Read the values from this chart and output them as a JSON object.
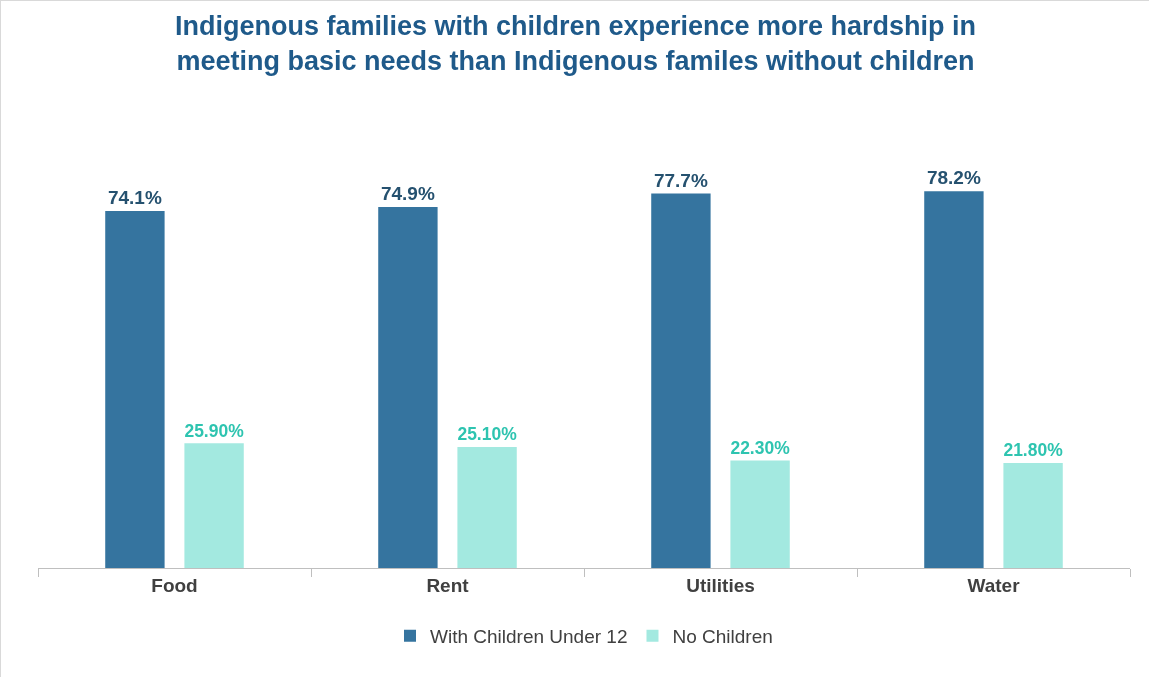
{
  "chart_data": {
    "type": "bar",
    "title": "Indigenous families with children experience more hardship in meeting basic needs than Indigenous familes without children",
    "categories": [
      "Food",
      "Rent",
      "Utilities",
      "Water"
    ],
    "series": [
      {
        "name": "With Children Under 12",
        "color": "#35749f",
        "values": [
          74.1,
          74.9,
          77.7,
          78.2
        ],
        "value_labels": [
          "74.1%",
          "74.9%",
          "77.7%",
          "78.2%"
        ]
      },
      {
        "name": "No Children",
        "color": "#a3e9e0",
        "values": [
          25.9,
          25.1,
          22.3,
          21.8
        ],
        "value_labels": [
          "25.90%",
          "25.10%",
          "22.30%",
          "21.80%"
        ]
      }
    ],
    "legend": "bottom"
  }
}
